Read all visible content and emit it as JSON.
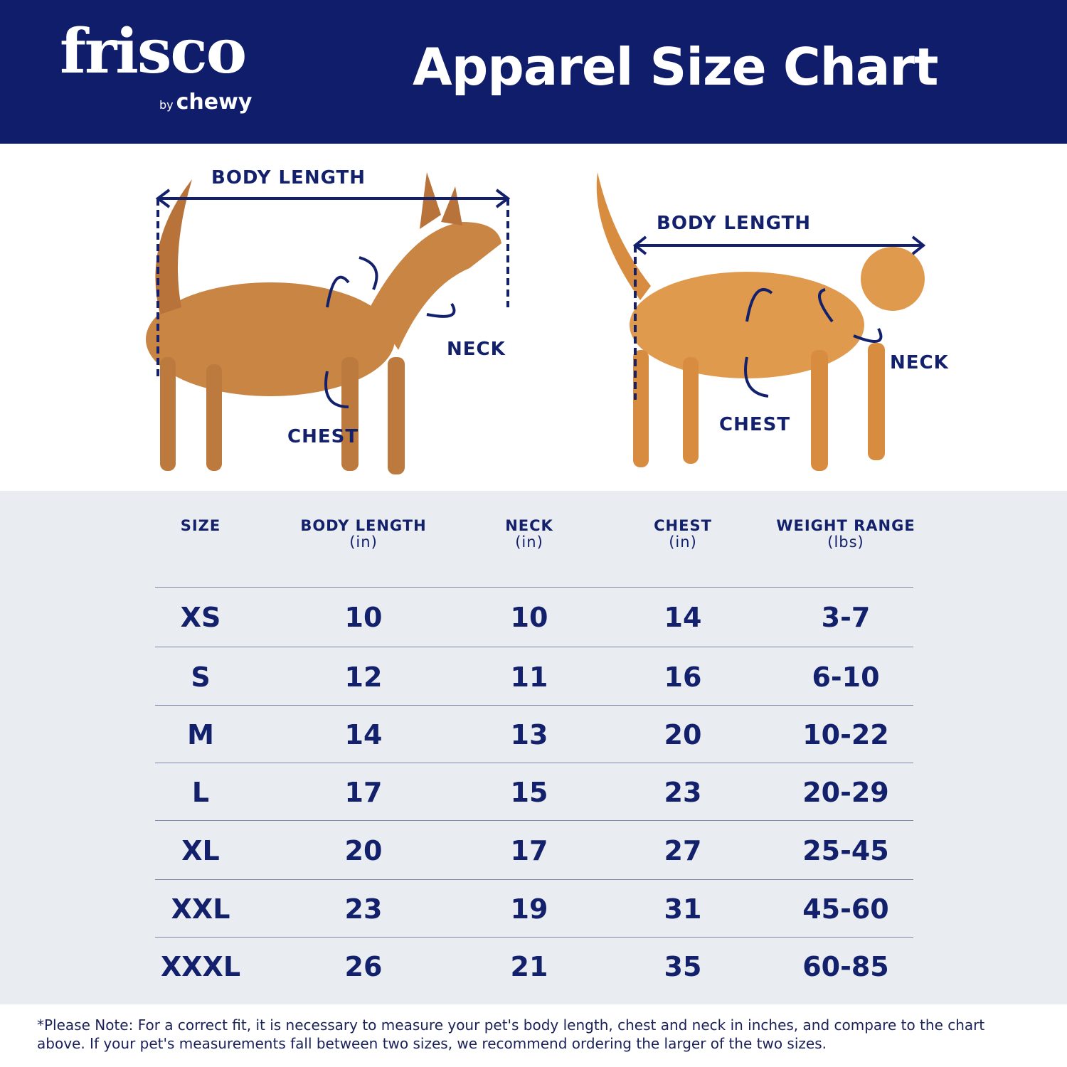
{
  "header": {
    "logo_text": "frisco",
    "logo_sub_by": "by",
    "logo_sub_brand": "chewy",
    "title": "Apparel Size Chart"
  },
  "illustration": {
    "dog": {
      "body_length": "BODY LENGTH",
      "neck": "NECK",
      "chest": "CHEST"
    },
    "cat": {
      "body_length": "BODY LENGTH",
      "neck": "NECK",
      "chest": "CHEST"
    }
  },
  "table": {
    "columns": [
      {
        "label": "SIZE",
        "unit": ""
      },
      {
        "label": "BODY LENGTH",
        "unit": "(in)"
      },
      {
        "label": "NECK",
        "unit": "(in)"
      },
      {
        "label": "CHEST",
        "unit": "(in)"
      },
      {
        "label": "WEIGHT RANGE",
        "unit": "(lbs)"
      }
    ],
    "rows": [
      [
        "XS",
        "10",
        "10",
        "14",
        "3-7"
      ],
      [
        "S",
        "12",
        "11",
        "16",
        "6-10"
      ],
      [
        "M",
        "14",
        "13",
        "20",
        "10-22"
      ],
      [
        "L",
        "17",
        "15",
        "23",
        "20-29"
      ],
      [
        "XL",
        "20",
        "17",
        "27",
        "25-45"
      ],
      [
        "XXL",
        "23",
        "19",
        "31",
        "45-60"
      ],
      [
        "XXXL",
        "26",
        "21",
        "35",
        "60-85"
      ]
    ]
  },
  "footnote": "*Please Note: For a correct fit, it is necessary to measure your pet's body length, chest and neck in inches, and compare to the chart above. If your pet's measurements fall between two sizes, we recommend ordering the larger of the two sizes.",
  "colors": {
    "navy": "#0f1d6b",
    "table_bg": "#e9ecf1",
    "dog": "#c98544",
    "cat": "#e09a4e"
  }
}
